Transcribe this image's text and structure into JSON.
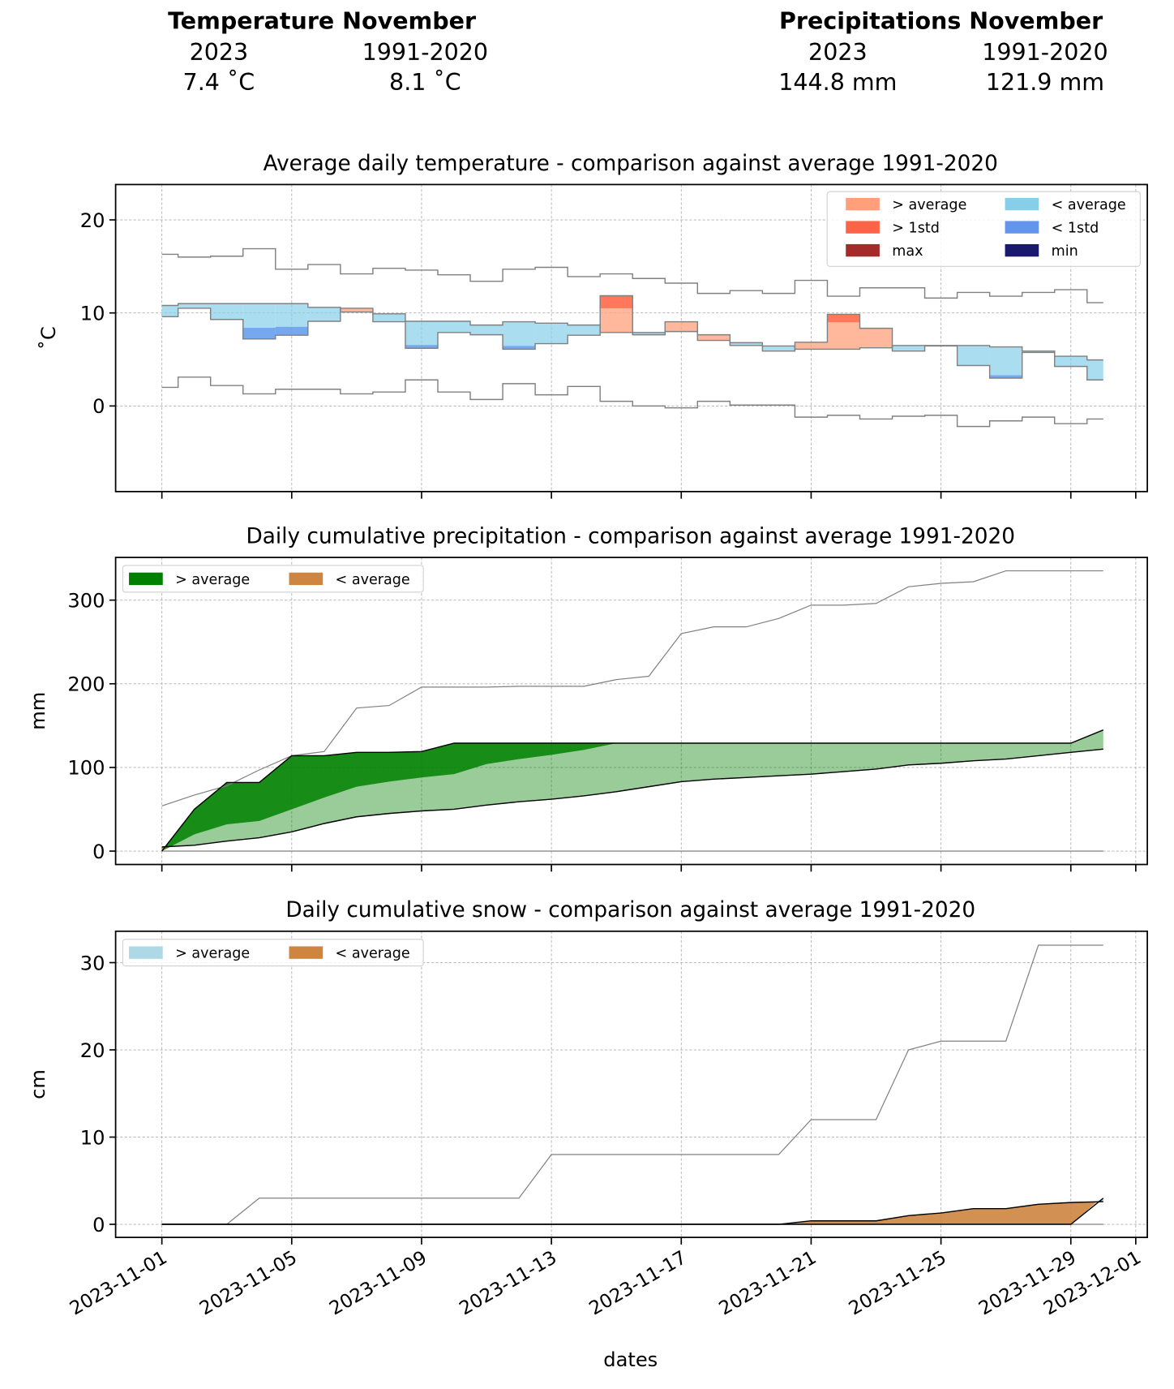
{
  "header": {
    "temperature": {
      "title": "Temperature November",
      "col_current": "2023",
      "col_normal": "1991-2020",
      "val_current": "7.4 ˚C",
      "val_normal": "8.1 ˚C"
    },
    "precipitation": {
      "title": "Precipitations November",
      "col_current": "2023",
      "col_normal": "1991-2020",
      "val_current": "144.8 mm",
      "val_normal": "121.9 mm"
    }
  },
  "x_axis": {
    "label": "dates",
    "ticks": [
      {
        "day": 1,
        "label": "2023-11-01"
      },
      {
        "day": 5,
        "label": "2023-11-05"
      },
      {
        "day": 9,
        "label": "2023-11-09"
      },
      {
        "day": 13,
        "label": "2023-11-13"
      },
      {
        "day": 17,
        "label": "2023-11-17"
      },
      {
        "day": 21,
        "label": "2023-11-21"
      },
      {
        "day": 25,
        "label": "2023-11-25"
      },
      {
        "day": 29,
        "label": "2023-11-29"
      },
      {
        "day": 31,
        "label": "2023-12-01"
      }
    ]
  },
  "colors": {
    "above_avg": "#FFA07A",
    "above_1std": "#FF6347",
    "max": "#A52A2A",
    "below_avg": "#87CEEB",
    "below_1std": "#6495ED",
    "min": "#191970",
    "precip_above": "#008000",
    "precip_below": "#CD853F",
    "snow_above": "#ADD8E6",
    "snow_below": "#CD853F",
    "line": "#808080"
  },
  "chart_data": [
    {
      "type": "area",
      "title": "Average daily temperature - comparison against average 1991-2020",
      "ylabel": "˚C",
      "xlabel": "",
      "ylim": [
        -9.2,
        23.8
      ],
      "yticks": [
        0,
        10,
        20
      ],
      "grid": true,
      "legend_position": "top-right",
      "legend": [
        {
          "label": "> average",
          "color": "#FFA07A"
        },
        {
          "label": "< average",
          "color": "#87CEEB"
        },
        {
          "label": "> 1std",
          "color": "#FF6347"
        },
        {
          "label": "< 1std",
          "color": "#6495ED"
        },
        {
          "label": "max",
          "color": "#A52A2A"
        },
        {
          "label": "min",
          "color": "#191970"
        }
      ],
      "days": [
        1,
        2,
        3,
        4,
        5,
        6,
        7,
        8,
        9,
        10,
        11,
        12,
        13,
        14,
        15,
        16,
        17,
        18,
        19,
        20,
        21,
        22,
        23,
        24,
        25,
        26,
        27,
        28,
        29,
        30
      ],
      "max": [
        16.3,
        16.0,
        16.1,
        16.9,
        14.7,
        15.2,
        14.2,
        14.8,
        14.6,
        14.1,
        13.4,
        14.7,
        14.9,
        13.9,
        14.2,
        13.7,
        13.2,
        12.1,
        12.4,
        12.1,
        13.5,
        11.8,
        12.7,
        12.7,
        11.6,
        12.2,
        11.8,
        12.2,
        12.5,
        11.1
      ],
      "min": [
        2.0,
        3.1,
        2.2,
        1.3,
        1.8,
        1.8,
        1.3,
        1.5,
        2.8,
        1.5,
        0.7,
        2.4,
        1.2,
        2.1,
        0.5,
        0.0,
        -0.2,
        0.5,
        0.1,
        0.1,
        -1.2,
        -1.0,
        -1.4,
        -1.1,
        -1.0,
        -2.2,
        -1.6,
        -1.2,
        -1.9,
        -1.4
      ],
      "average": [
        10.8,
        11.0,
        11.0,
        11.0,
        11.0,
        10.6,
        10.1,
        9.9,
        9.1,
        9.1,
        8.7,
        9.05,
        8.9,
        8.7,
        7.9,
        7.9,
        8.0,
        7.05,
        6.8,
        6.45,
        6.1,
        6.1,
        6.25,
        6.5,
        6.5,
        6.5,
        6.35,
        5.9,
        5.35,
        4.95
      ],
      "actual_2023": [
        9.6,
        10.5,
        9.3,
        7.2,
        7.6,
        9.1,
        10.5,
        9.05,
        6.2,
        7.9,
        7.65,
        6.1,
        6.7,
        7.6,
        11.85,
        7.65,
        9.05,
        7.65,
        6.5,
        5.9,
        6.85,
        9.85,
        8.35,
        5.9,
        6.45,
        4.35,
        3.0,
        5.75,
        4.25,
        2.8
      ],
      "beyond_1std": [
        {
          "day": 4,
          "threshold": 8.4
        },
        {
          "day": 5,
          "threshold": 8.5
        },
        {
          "day": 9,
          "threshold": 6.55
        },
        {
          "day": 12,
          "threshold": 6.45
        },
        {
          "day": 15,
          "threshold": 10.5
        },
        {
          "day": 22,
          "threshold": 9.0
        },
        {
          "day": 27,
          "threshold": 3.3
        }
      ]
    },
    {
      "type": "area",
      "title": "Daily cumulative precipitation - comparison against average 1991-2020",
      "ylabel": "mm",
      "xlabel": "",
      "ylim": [
        -16,
        351
      ],
      "yticks": [
        0,
        100,
        200,
        300
      ],
      "grid": true,
      "legend_position": "top-left",
      "legend": [
        {
          "label": "> average",
          "color": "#008000"
        },
        {
          "label": "< average",
          "color": "#CD853F"
        }
      ],
      "days": [
        1,
        2,
        3,
        4,
        5,
        6,
        7,
        8,
        9,
        10,
        11,
        12,
        13,
        14,
        15,
        16,
        17,
        18,
        19,
        20,
        21,
        22,
        23,
        24,
        25,
        26,
        27,
        28,
        29,
        30
      ],
      "max": [
        54,
        67,
        78,
        97,
        114,
        119,
        171,
        174,
        196,
        196,
        196,
        197,
        197,
        197,
        205,
        209,
        260,
        268,
        268,
        278,
        294,
        294,
        296,
        316,
        320,
        322,
        335,
        335,
        335,
        335
      ],
      "min": [
        0,
        0,
        0,
        0,
        0,
        0,
        0,
        0,
        0,
        0,
        0,
        0,
        0,
        0,
        0,
        0,
        0,
        0,
        0,
        0,
        0,
        0,
        0,
        0,
        0,
        0,
        0,
        0,
        0,
        0
      ],
      "average": [
        5,
        7,
        12,
        16,
        23,
        33,
        41,
        45,
        48,
        50,
        55,
        59,
        62,
        66,
        71,
        77,
        83,
        86,
        88,
        90,
        92,
        95,
        98,
        103,
        105,
        108,
        110,
        114,
        118,
        121.9
      ],
      "upper_1std": [
        5,
        20,
        32,
        36,
        50,
        64,
        77,
        83,
        88,
        92,
        104,
        110,
        115,
        121,
        129,
        null,
        null,
        null,
        null,
        null,
        null,
        null,
        null,
        null,
        null,
        null,
        null,
        null,
        null,
        null
      ],
      "actual_2023": [
        0,
        50,
        82,
        82,
        114,
        114,
        118,
        118,
        119,
        129,
        129,
        129,
        129,
        129,
        129,
        129,
        129,
        129,
        129,
        129,
        129,
        129,
        129,
        129,
        129,
        129,
        129,
        129,
        129,
        144.8
      ]
    },
    {
      "type": "area",
      "title": "Daily cumulative snow - comparison against average 1991-2020",
      "ylabel": "cm",
      "xlabel": "dates",
      "ylim": [
        -1.5,
        33.6
      ],
      "yticks": [
        0,
        10,
        20,
        30
      ],
      "grid": true,
      "legend_position": "top-left",
      "legend": [
        {
          "label": "> average",
          "color": "#ADD8E6"
        },
        {
          "label": "< average",
          "color": "#CD853F"
        }
      ],
      "days": [
        1,
        2,
        3,
        4,
        5,
        6,
        7,
        8,
        9,
        10,
        11,
        12,
        13,
        14,
        15,
        16,
        17,
        18,
        19,
        20,
        21,
        22,
        23,
        24,
        25,
        26,
        27,
        28,
        29,
        30
      ],
      "max": [
        0,
        0,
        0,
        3,
        3,
        3,
        3,
        3,
        3,
        3,
        3,
        3,
        8,
        8,
        8,
        8,
        8,
        8,
        8,
        8,
        12,
        12,
        12,
        20,
        21,
        21,
        21,
        32,
        32,
        32
      ],
      "min": [
        0,
        0,
        0,
        0,
        0,
        0,
        0,
        0,
        0,
        0,
        0,
        0,
        0,
        0,
        0,
        0,
        0,
        0,
        0,
        0,
        0,
        0,
        0,
        0,
        0,
        0,
        0,
        0,
        0,
        0
      ],
      "average": [
        0,
        0,
        0,
        0,
        0,
        0,
        0,
        0,
        0,
        0,
        0,
        0,
        0,
        0,
        0,
        0,
        0,
        0,
        0,
        0,
        0.4,
        0.4,
        0.4,
        1.0,
        1.3,
        1.8,
        1.8,
        2.3,
        2.5,
        2.6
      ],
      "actual_2023": [
        0,
        0,
        0,
        0,
        0,
        0,
        0,
        0,
        0,
        0,
        0,
        0,
        0,
        0,
        0,
        0,
        0,
        0,
        0,
        0,
        0,
        0,
        0,
        0,
        0,
        0,
        0,
        0,
        0,
        3
      ]
    }
  ]
}
